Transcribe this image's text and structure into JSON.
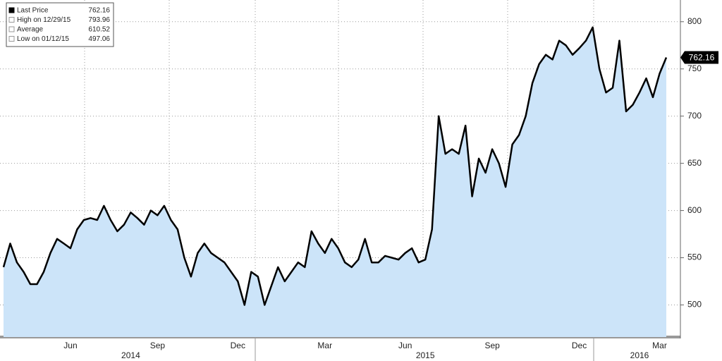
{
  "chart_data": {
    "type": "area",
    "categories": [
      null,
      null,
      null,
      null,
      null,
      null,
      null,
      null,
      null,
      null,
      "Jun",
      null,
      null,
      null,
      null,
      null,
      null,
      null,
      null,
      null,
      null,
      null,
      null,
      "Sep",
      null,
      null,
      null,
      null,
      null,
      null,
      null,
      null,
      null,
      null,
      null,
      "Dec",
      null,
      null,
      null,
      null,
      null,
      null,
      null,
      null,
      null,
      null,
      null,
      null,
      "Mar",
      null,
      null,
      null,
      null,
      null,
      null,
      null,
      null,
      null,
      null,
      null,
      "Jun",
      null,
      null,
      null,
      null,
      null,
      null,
      null,
      null,
      null,
      null,
      null,
      null,
      "Sep",
      null,
      null,
      null,
      null,
      null,
      null,
      null,
      null,
      null,
      null,
      null,
      null,
      "Dec",
      null,
      null,
      null,
      null,
      null,
      null,
      null,
      null,
      null,
      null,
      null,
      "Mar",
      null
    ],
    "year_categories": [
      null,
      null,
      null,
      null,
      null,
      null,
      null,
      null,
      null,
      null,
      null,
      null,
      null,
      null,
      null,
      null,
      null,
      null,
      null,
      "2014",
      null,
      null,
      null,
      null,
      null,
      null,
      null,
      null,
      null,
      null,
      null,
      null,
      null,
      null,
      null,
      null,
      null,
      null,
      null,
      null,
      null,
      null,
      null,
      null,
      null,
      null,
      null,
      null,
      null,
      null,
      null,
      null,
      null,
      null,
      null,
      null,
      null,
      null,
      null,
      null,
      null,
      null,
      null,
      "2015",
      null,
      null,
      null,
      null,
      null,
      null,
      null,
      null,
      null,
      null,
      null,
      null,
      null,
      null,
      null,
      null,
      null,
      null,
      null,
      null,
      null,
      null,
      null,
      null,
      null,
      null,
      null,
      null,
      null,
      null,
      null,
      "2016",
      null,
      null,
      null,
      null
    ],
    "values": [
      540,
      565,
      545,
      535,
      522,
      522,
      535,
      555,
      570,
      565,
      560,
      580,
      590,
      592,
      590,
      605,
      590,
      578,
      585,
      598,
      592,
      585,
      600,
      595,
      605,
      590,
      580,
      550,
      530,
      555,
      565,
      555,
      550,
      545,
      535,
      525,
      500,
      535,
      530,
      500,
      520,
      540,
      525,
      535,
      545,
      540,
      578,
      565,
      555,
      570,
      560,
      545,
      540,
      548,
      570,
      545,
      545,
      552,
      550,
      548,
      555,
      560,
      545,
      548,
      580,
      700,
      660,
      665,
      660,
      690,
      615,
      655,
      640,
      665,
      650,
      625,
      670,
      680,
      700,
      735,
      755,
      765,
      760,
      780,
      775,
      765,
      772,
      780,
      794,
      750,
      725,
      730,
      780,
      705,
      712,
      725,
      740,
      720,
      745,
      762.16
    ],
    "color": "#000000",
    "fill": "#cce4f9",
    "ylim": [
      466,
      823
    ],
    "yticks": [
      500,
      550,
      600,
      650,
      700,
      750,
      800
    ],
    "grid": true,
    "legend": [
      {
        "label": "Last Price",
        "value": 762.16
      },
      {
        "label": "High on 12/29/15",
        "value": 793.96
      },
      {
        "label": "Average",
        "value": 610.52
      },
      {
        "label": "Low on 01/12/15",
        "value": 497.06
      }
    ]
  }
}
